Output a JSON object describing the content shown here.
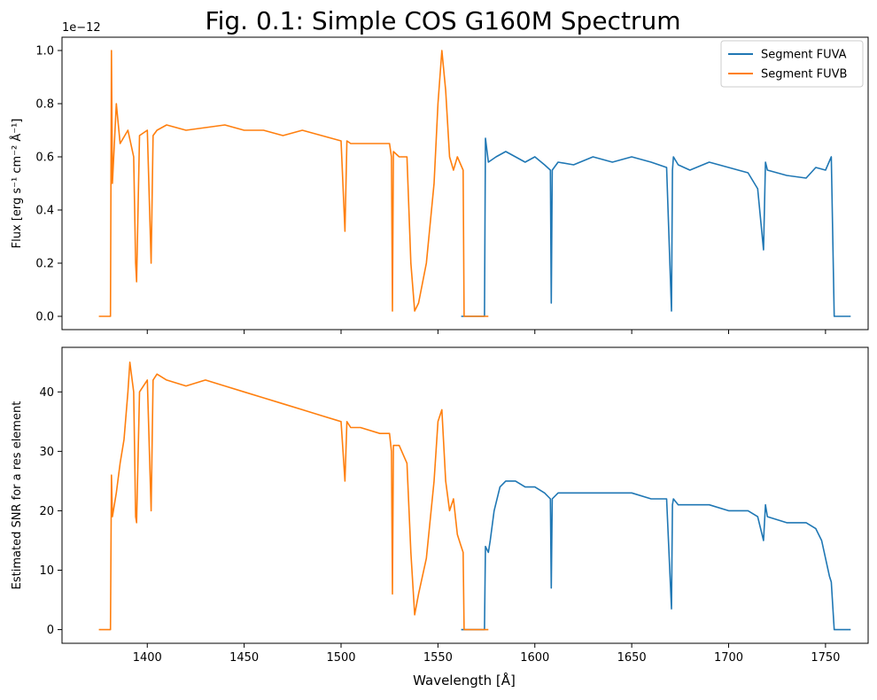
{
  "figure": {
    "title": "Fig. 0.1: Simple COS G160M Spectrum",
    "xlabel": "Wavelength [Å]"
  },
  "legend": {
    "position": "top-right",
    "entries": [
      "Segment FUVA",
      "Segment FUVB"
    ]
  },
  "colors": {
    "FUVA": "#1f77b4",
    "FUVB": "#ff7f0e"
  },
  "chart_data": [
    {
      "type": "line",
      "ylabel": "Flux [erg s⁻¹ cm⁻² Å⁻¹]",
      "y_offset_label": "1e−12",
      "xlim": [
        1356,
        1772
      ],
      "ylim": [
        -0.05,
        1.05
      ],
      "xticks": [
        1400,
        1450,
        1500,
        1550,
        1600,
        1650,
        1700,
        1750
      ],
      "yticks": [
        0.0,
        0.2,
        0.4,
        0.6,
        0.8,
        1.0
      ],
      "ytick_labels": [
        "0.0",
        "0.2",
        "0.4",
        "0.6",
        "0.8",
        "1.0"
      ],
      "grid": false,
      "series": [
        {
          "name": "Segment FUVA",
          "color": "#1f77b4",
          "x": [
            1562,
            1574,
            1574.5,
            1576,
            1580,
            1585,
            1590,
            1595,
            1600,
            1605,
            1608,
            1608.5,
            1609,
            1612,
            1620,
            1630,
            1640,
            1650,
            1660,
            1668,
            1670.5,
            1671,
            1671.5,
            1674,
            1680,
            1690,
            1700,
            1705,
            1710,
            1715,
            1718,
            1719,
            1720,
            1725,
            1730,
            1740,
            1745,
            1750,
            1753,
            1754.5,
            1755.5,
            1763
          ],
          "y": [
            0.0,
            0.0,
            0.67,
            0.58,
            0.6,
            0.62,
            0.6,
            0.58,
            0.6,
            0.57,
            0.55,
            0.05,
            0.55,
            0.58,
            0.57,
            0.6,
            0.58,
            0.6,
            0.58,
            0.56,
            0.02,
            0.55,
            0.6,
            0.57,
            0.55,
            0.58,
            0.56,
            0.55,
            0.54,
            0.48,
            0.25,
            0.58,
            0.55,
            0.54,
            0.53,
            0.52,
            0.56,
            0.55,
            0.6,
            0.0,
            0.0,
            0.0
          ]
        },
        {
          "name": "Segment FUVB",
          "color": "#ff7f0e",
          "x": [
            1375,
            1381,
            1381.5,
            1382,
            1384,
            1386,
            1390,
            1393,
            1394,
            1394.5,
            1396,
            1400,
            1402,
            1403,
            1405,
            1410,
            1420,
            1430,
            1440,
            1450,
            1460,
            1470,
            1480,
            1490,
            1500,
            1502,
            1503,
            1505,
            1510,
            1515,
            1520,
            1525,
            1526,
            1526.5,
            1527,
            1530,
            1534,
            1536,
            1538,
            1540,
            1544,
            1548,
            1550,
            1552,
            1554,
            1556,
            1558,
            1560,
            1563,
            1563.5,
            1576
          ],
          "y": [
            0.0,
            0.0,
            1.0,
            0.5,
            0.8,
            0.65,
            0.7,
            0.6,
            0.2,
            0.13,
            0.68,
            0.7,
            0.2,
            0.68,
            0.7,
            0.72,
            0.7,
            0.71,
            0.72,
            0.7,
            0.7,
            0.68,
            0.7,
            0.68,
            0.66,
            0.32,
            0.66,
            0.65,
            0.65,
            0.65,
            0.65,
            0.65,
            0.6,
            0.02,
            0.62,
            0.6,
            0.6,
            0.2,
            0.02,
            0.05,
            0.2,
            0.5,
            0.8,
            1.0,
            0.85,
            0.6,
            0.55,
            0.6,
            0.55,
            0.0,
            0.0
          ]
        }
      ]
    },
    {
      "type": "line",
      "ylabel": "Estimated SNR for a res element",
      "xlim": [
        1356,
        1772
      ],
      "ylim": [
        -2.3,
        47.5
      ],
      "xticks": [
        1400,
        1450,
        1500,
        1550,
        1600,
        1650,
        1700,
        1750
      ],
      "xtick_labels": [
        "1400",
        "1450",
        "1500",
        "1550",
        "1600",
        "1650",
        "1700",
        "1750"
      ],
      "yticks": [
        0,
        10,
        20,
        30,
        40
      ],
      "ytick_labels": [
        "0",
        "10",
        "20",
        "30",
        "40"
      ],
      "grid": false,
      "series": [
        {
          "name": "Segment FUVA",
          "color": "#1f77b4",
          "x": [
            1562,
            1574,
            1574.5,
            1576,
            1577,
            1579,
            1582,
            1585,
            1590,
            1595,
            1600,
            1605,
            1608,
            1608.5,
            1609,
            1612,
            1620,
            1630,
            1640,
            1650,
            1660,
            1668,
            1670.5,
            1671,
            1671.5,
            1674,
            1680,
            1690,
            1700,
            1710,
            1715,
            1718,
            1719,
            1720,
            1730,
            1740,
            1745,
            1748,
            1750,
            1752,
            1753,
            1754.5,
            1755.5,
            1763
          ],
          "y": [
            0,
            0,
            14,
            13,
            15,
            20,
            24,
            25,
            25,
            24,
            24,
            23,
            22,
            7,
            22,
            23,
            23,
            23,
            23,
            23,
            22,
            22,
            3.5,
            21,
            22,
            21,
            21,
            21,
            20,
            20,
            19,
            15,
            21,
            19,
            18,
            18,
            17,
            15,
            12,
            9,
            8,
            0,
            0,
            0
          ]
        },
        {
          "name": "Segment FUVB",
          "color": "#ff7f0e",
          "x": [
            1375,
            1381,
            1381.5,
            1382,
            1384,
            1386,
            1388,
            1390,
            1391,
            1393,
            1394,
            1394.5,
            1396,
            1400,
            1402,
            1403,
            1405,
            1410,
            1420,
            1430,
            1440,
            1450,
            1460,
            1470,
            1480,
            1490,
            1500,
            1502,
            1503,
            1505,
            1510,
            1520,
            1525,
            1526,
            1526.5,
            1527,
            1530,
            1534,
            1536,
            1538,
            1540,
            1544,
            1548,
            1550,
            1552,
            1554,
            1556,
            1558,
            1560,
            1562,
            1563,
            1563.5,
            1576
          ],
          "y": [
            0,
            0,
            26,
            19,
            23,
            28,
            32,
            40,
            45,
            40,
            19,
            18,
            40,
            42,
            20,
            42,
            43,
            42,
            41,
            42,
            41,
            40,
            39,
            38,
            37,
            36,
            35,
            25,
            35,
            34,
            34,
            33,
            33,
            30,
            6,
            31,
            31,
            28,
            13,
            2.5,
            6,
            12,
            25,
            35,
            37,
            25,
            20,
            22,
            16,
            14,
            13,
            0,
            0
          ]
        }
      ]
    }
  ]
}
